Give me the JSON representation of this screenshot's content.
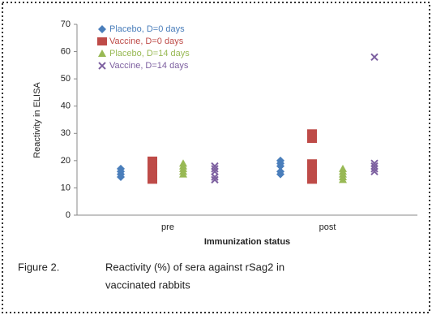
{
  "chart_data": {
    "type": "scatter",
    "ylabel": "Reactivity in ELISA",
    "xlabel": "Immunization status",
    "caption": [
      "Figure 2.",
      "Reactivity (%) of sera against rSag2 in",
      "vaccinated rabbits"
    ],
    "categories": [
      "pre",
      "post"
    ],
    "series": [
      {
        "name": "Placebo, D=0 days",
        "color": "#4a7ebb",
        "marker": "diamond",
        "values": [
          [
            14,
            15,
            16,
            17
          ],
          [
            15,
            16,
            18,
            19,
            20
          ]
        ]
      },
      {
        "name": "Vaccine, D=0 days",
        "color": "#be4b48",
        "marker": "square",
        "values": [
          [
            13,
            15,
            17,
            18,
            19,
            20
          ],
          [
            13,
            15,
            17,
            18,
            19,
            28,
            29,
            30
          ]
        ]
      },
      {
        "name": "Placebo, D=14 days",
        "color": "#98b954",
        "marker": "triangle",
        "values": [
          [
            15,
            16,
            17,
            18,
            19
          ],
          [
            13,
            14,
            15,
            16,
            17
          ]
        ]
      },
      {
        "name": "Vaccine, D=14 days",
        "color": "#7d60a0",
        "marker": "x",
        "values": [
          [
            13,
            14,
            16,
            17,
            18
          ],
          [
            16,
            17,
            18,
            19,
            58
          ]
        ]
      }
    ],
    "ylim": [
      0,
      70
    ],
    "yticks": [
      0,
      10,
      20,
      30,
      40,
      50,
      60,
      70
    ],
    "legend": "upper left"
  }
}
